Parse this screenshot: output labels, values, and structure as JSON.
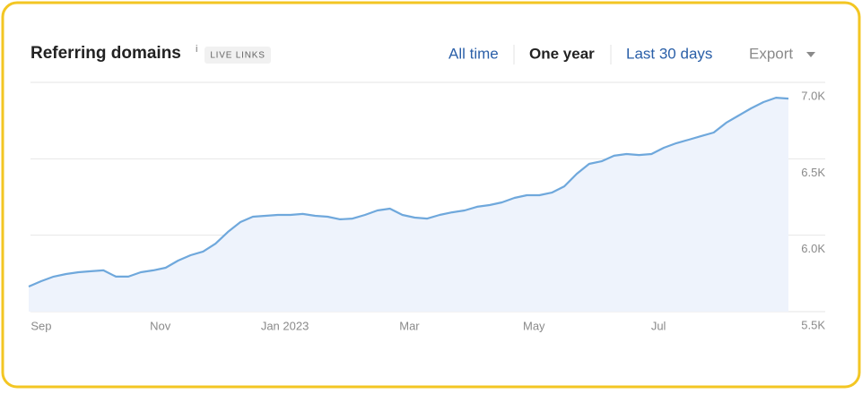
{
  "toolbar": {
    "badge": "LIVE LINKS",
    "info": "i",
    "buttons": [
      "All time",
      "One year",
      "Last 30 days"
    ],
    "export": "Export"
  },
  "chart_data": {
    "type": "area",
    "title": "Referring domains",
    "categories": [
      null,
      "Sep",
      null,
      null,
      null,
      null,
      null,
      null,
      null,
      null,
      null,
      "Nov",
      null,
      null,
      null,
      null,
      null,
      null,
      null,
      null,
      null,
      "Jan 2023",
      null,
      null,
      null,
      null,
      null,
      null,
      null,
      null,
      null,
      "Mar",
      null,
      null,
      null,
      null,
      null,
      null,
      null,
      null,
      null,
      "May",
      null,
      null,
      null,
      null,
      null,
      null,
      null,
      null,
      null,
      "Jul",
      null,
      null,
      null,
      null,
      null,
      null,
      null,
      null,
      null,
      null
    ],
    "values": [
      5664,
      5699,
      5729,
      5746,
      5758,
      5764,
      5770,
      5729,
      5729,
      5758,
      5770,
      5787,
      5834,
      5869,
      5893,
      5945,
      6022,
      6086,
      6121,
      6127,
      6133,
      6133,
      6139,
      6127,
      6121,
      6104,
      6109,
      6133,
      6162,
      6174,
      6133,
      6115,
      6109,
      6133,
      6150,
      6162,
      6186,
      6197,
      6215,
      6244,
      6262,
      6262,
      6279,
      6320,
      6402,
      6467,
      6484,
      6520,
      6531,
      6525,
      6531,
      6572,
      6602,
      6625,
      6649,
      6672,
      6736,
      6783,
      6830,
      6871,
      6900,
      6894
    ],
    "color": "#6fa8dc",
    "area_color": "#eef3fc",
    "ylim": [
      5500,
      7000
    ],
    "yticks": [
      {
        "value": 5500,
        "label": "5.5K"
      },
      {
        "value": 6000,
        "label": "6.0K"
      },
      {
        "value": 6500,
        "label": "6.5K"
      },
      {
        "value": 7000,
        "label": "7.0K"
      }
    ],
    "grid": true
  }
}
